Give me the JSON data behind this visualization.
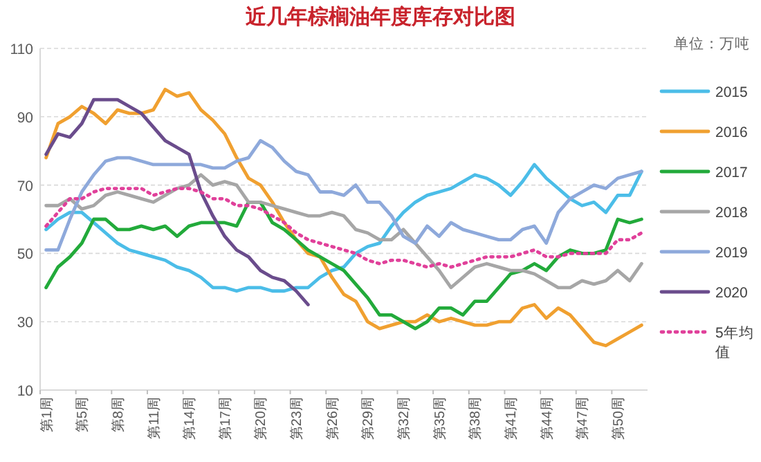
{
  "chart_data": {
    "type": "line",
    "title": "近几年棕榈油年度库存对比图",
    "ylabel": "单位：万吨",
    "categories": [
      "第1周",
      null,
      null,
      "第5周",
      null,
      null,
      "第8周",
      null,
      null,
      "第11周",
      null,
      null,
      "第14周",
      null,
      null,
      "第17周",
      null,
      null,
      "第20周",
      null,
      null,
      "第23周",
      null,
      null,
      "第26周",
      null,
      null,
      "第29周",
      null,
      null,
      "第32周",
      null,
      null,
      "第35周",
      null,
      null,
      "第38周",
      null,
      null,
      "第41周",
      null,
      null,
      "第44周",
      null,
      null,
      "第47周",
      null,
      null,
      "第50周",
      null,
      null
    ],
    "ylim": [
      10,
      110
    ],
    "yticks": [
      10,
      30,
      50,
      70,
      90,
      110
    ],
    "grid": "y",
    "legend": "right",
    "series": [
      {
        "name": "2015",
        "color": "#4bbde8",
        "values": [
          57,
          60,
          62,
          62,
          59,
          56,
          53,
          51,
          50,
          49,
          48,
          46,
          45,
          43,
          40,
          40,
          39,
          40,
          40,
          39,
          39,
          40,
          40,
          43,
          45,
          46,
          50,
          52,
          53,
          58,
          62,
          65,
          67,
          68,
          69,
          71,
          73,
          72,
          70,
          67,
          71,
          76,
          72,
          69,
          66,
          64,
          65,
          62,
          67,
          67,
          74
        ]
      },
      {
        "name": "2016",
        "color": "#f0a030",
        "values": [
          78,
          88,
          90,
          93,
          91,
          88,
          92,
          91,
          91,
          92,
          98,
          96,
          97,
          92,
          89,
          85,
          78,
          72,
          70,
          65,
          59,
          54,
          50,
          49,
          43,
          38,
          36,
          30,
          28,
          29,
          30,
          30,
          32,
          30,
          31,
          30,
          29,
          29,
          30,
          30,
          34,
          35,
          31,
          34,
          32,
          28,
          24,
          23,
          25,
          27,
          29
        ]
      },
      {
        "name": "2017",
        "color": "#22aa3a",
        "values": [
          40,
          46,
          49,
          53,
          60,
          60,
          57,
          57,
          58,
          57,
          58,
          55,
          58,
          59,
          59,
          59,
          58,
          65,
          65,
          59,
          57,
          54,
          51,
          49,
          47,
          45,
          41,
          37,
          32,
          32,
          30,
          28,
          30,
          34,
          34,
          32,
          36,
          36,
          40,
          44,
          45,
          47,
          45,
          49,
          51,
          50,
          50,
          51,
          60,
          59,
          60
        ]
      },
      {
        "name": "2018",
        "color": "#a6a6a6",
        "values": [
          64,
          64,
          66,
          63,
          64,
          67,
          68,
          67,
          66,
          65,
          67,
          69,
          70,
          73,
          70,
          71,
          70,
          65,
          65,
          64,
          63,
          62,
          61,
          61,
          62,
          61,
          57,
          56,
          54,
          54,
          57,
          53,
          49,
          45,
          40,
          43,
          46,
          47,
          46,
          45,
          45,
          44,
          42,
          40,
          40,
          42,
          41,
          42,
          45,
          42,
          47
        ]
      },
      {
        "name": "2019",
        "color": "#8ea9db",
        "values": [
          51,
          51,
          60,
          68,
          73,
          77,
          78,
          78,
          77,
          76,
          76,
          76,
          76,
          76,
          75,
          75,
          77,
          78,
          83,
          81,
          77,
          74,
          73,
          68,
          68,
          67,
          70,
          65,
          65,
          61,
          55,
          53,
          58,
          55,
          59,
          57,
          56,
          55,
          54,
          54,
          57,
          58,
          53,
          62,
          66,
          68,
          70,
          69,
          72,
          73,
          74
        ]
      },
      {
        "name": "2020",
        "color": "#6a4c8c",
        "values": [
          79,
          85,
          84,
          88,
          95,
          95,
          95,
          93,
          91,
          87,
          83,
          81,
          79,
          68,
          61,
          55,
          51,
          49,
          45,
          43,
          42,
          39,
          35,
          null,
          null,
          null,
          null,
          null,
          null,
          null,
          null,
          null,
          null,
          null,
          null,
          null,
          null,
          null,
          null,
          null,
          null,
          null,
          null,
          null,
          null,
          null,
          null,
          null,
          null,
          null,
          null
        ]
      },
      {
        "name": "5年均值",
        "color": "#e0409a",
        "line_style": "dotted",
        "values": [
          58,
          62,
          66,
          66,
          68,
          69,
          69,
          69,
          69,
          67,
          68,
          69,
          69,
          68,
          66,
          66,
          64,
          64,
          63,
          61,
          59,
          56,
          54,
          53,
          52,
          51,
          50,
          48,
          47,
          48,
          48,
          47,
          46,
          47,
          46,
          47,
          48,
          49,
          49,
          49,
          50,
          51,
          49,
          49,
          50,
          50,
          50,
          50,
          54,
          54,
          56
        ]
      }
    ]
  }
}
